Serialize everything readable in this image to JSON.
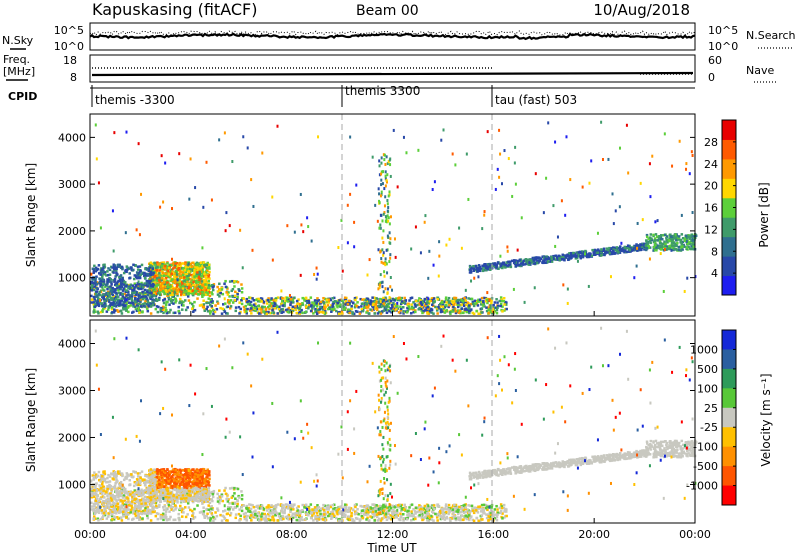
{
  "header": {
    "station": "Kapuskasing (fitACF)",
    "beam": "Beam 00",
    "date": "10/Aug/2018"
  },
  "noise_panel": {
    "left_label": "N.Sky",
    "left_ticks": [
      "10^5",
      "10^0"
    ],
    "right_ticks": [
      "10^5",
      "10^0"
    ],
    "right_label": "N.Search"
  },
  "freq_panel": {
    "left_label_1": "Freq.",
    "left_label_2": "[MHz]",
    "left_ticks": [
      "18",
      "8"
    ],
    "right_ticks": [
      "60",
      "0"
    ],
    "right_label": "Nave"
  },
  "cpid_panel": {
    "label": "CPID",
    "segments": [
      {
        "name": "themis -3300",
        "start_hour": 0
      },
      {
        "name": "themis 3300",
        "start_hour": 10
      },
      {
        "name": "tau (fast) 503",
        "start_hour": 16
      }
    ]
  },
  "colors": {
    "power_scale": [
      "#1e1ef0",
      "#2848a8",
      "#2f6f8f",
      "#3f9b6a",
      "#5ccf3a",
      "#ffd700",
      "#ff9900",
      "#ff5a00",
      "#e80000"
    ],
    "velocity_scale": [
      "#ff0000",
      "#ff5500",
      "#ff9000",
      "#ffc000",
      "#c8c8c0",
      "#58c838",
      "#2e9b5a",
      "#2a5fa0",
      "#1428d8"
    ]
  },
  "chart_data": [
    {
      "type": "heatmap",
      "quantity": "Power",
      "ylabel": "Slant Range [km]",
      "y_ticks": [
        1000,
        2000,
        3000,
        4000
      ],
      "ylim": [
        180,
        4500
      ],
      "x_ticks": [
        "00:00",
        "04:00",
        "08:00",
        "12:00",
        "16:00",
        "20:00",
        "00:00"
      ],
      "xlim_hours": [
        0,
        24
      ],
      "colorbar_label": "Power [dB]",
      "colorbar_ticks": [
        "4",
        "8",
        "12",
        "16",
        "20",
        "24",
        "28"
      ],
      "colorbar_range": [
        0,
        30
      ]
    },
    {
      "type": "heatmap",
      "quantity": "Velocity",
      "ylabel": "Slant Range [km]",
      "y_ticks": [
        1000,
        2000,
        3000,
        4000
      ],
      "ylim": [
        180,
        4500
      ],
      "x_ticks": [
        "00:00",
        "04:00",
        "08:00",
        "12:00",
        "16:00",
        "20:00",
        "00:00"
      ],
      "xlim_hours": [
        0,
        24
      ],
      "xlabel": "Time UT",
      "colorbar_label": "Velocity [m s⁻¹]",
      "colorbar_ticks": [
        "1000",
        "500",
        "100",
        "25",
        "-25",
        "-100",
        "-500",
        "-1000"
      ]
    }
  ]
}
